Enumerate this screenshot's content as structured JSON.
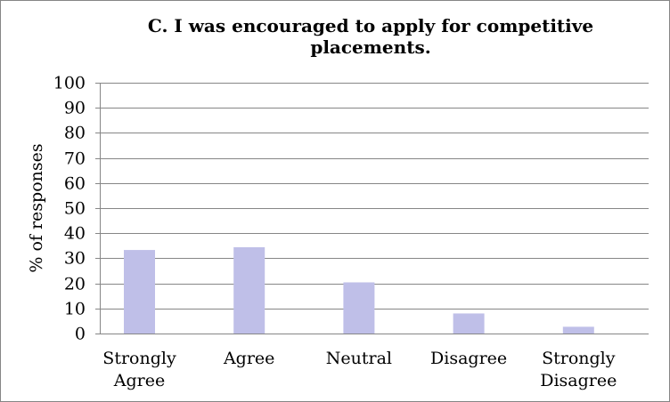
{
  "chart_data": {
    "type": "bar",
    "title_line1": "C. I was encouraged to apply for competitive",
    "title_line2": "placements.",
    "ylabel": "% of responses",
    "xlabel": "",
    "ylim": [
      0,
      100
    ],
    "yticks": [
      0,
      10,
      20,
      30,
      40,
      50,
      60,
      70,
      80,
      90,
      100
    ],
    "grid": true,
    "legend": "none",
    "categories": [
      [
        "Strongly",
        "Agree"
      ],
      [
        "Agree"
      ],
      [
        "Neutral"
      ],
      [
        "Disagree"
      ],
      [
        "Strongly",
        "Disagree"
      ]
    ],
    "values": [
      33.3,
      34.4,
      20.4,
      8.0,
      2.7
    ],
    "bar_color": "#bfbfe8",
    "grid_color": "#868686"
  }
}
